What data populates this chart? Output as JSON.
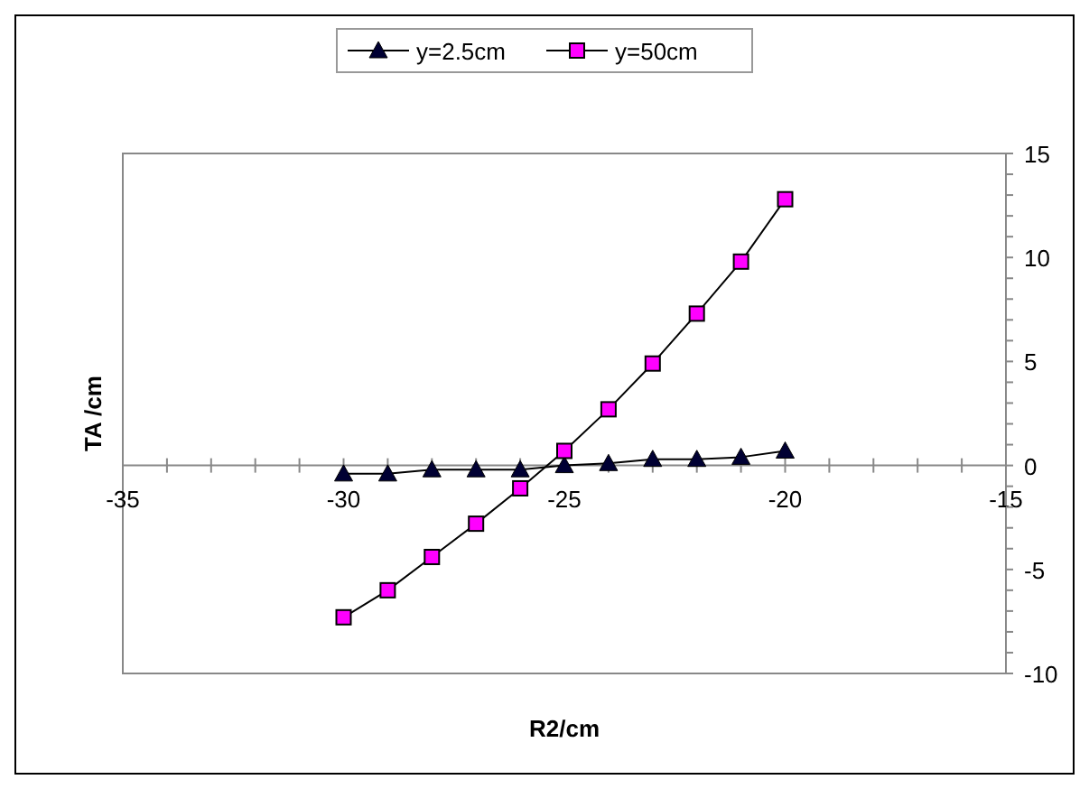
{
  "chart_data": {
    "type": "line",
    "xlabel": "R2/cm",
    "ylabel": "TA /cm",
    "legend": "top",
    "line_style": "solid",
    "x": [
      -30,
      -29,
      -28,
      -27,
      -26,
      -25,
      -24,
      -23,
      -22,
      -21,
      -20
    ],
    "xlim": [
      -35,
      -15
    ],
    "xticks": [
      -35,
      {
        "value": -34,
        "label": null
      },
      {
        "value": -33,
        "label": null
      },
      {
        "value": -32,
        "label": null
      },
      {
        "value": -31,
        "label": null
      },
      -30,
      {
        "value": -29,
        "label": null
      },
      {
        "value": -28,
        "label": null
      },
      {
        "value": -27,
        "label": null
      },
      {
        "value": -26,
        "label": null
      },
      -25,
      {
        "value": -24,
        "label": null
      },
      {
        "value": -23,
        "label": null
      },
      {
        "value": -22,
        "label": null
      },
      {
        "value": -21,
        "label": null
      },
      -20,
      {
        "value": -19,
        "label": null
      },
      {
        "value": -18,
        "label": null
      },
      {
        "value": -17,
        "label": null
      },
      {
        "value": -16,
        "label": null
      },
      -15
    ],
    "ylim": [
      -10,
      15
    ],
    "yticks": [
      -10,
      {
        "value": -9,
        "label": null
      },
      {
        "value": -8,
        "label": null
      },
      {
        "value": -7,
        "label": null
      },
      {
        "value": -6,
        "label": null
      },
      -5,
      {
        "value": -4,
        "label": null
      },
      {
        "value": -3,
        "label": null
      },
      {
        "value": -2,
        "label": null
      },
      {
        "value": -1,
        "label": null
      },
      0,
      {
        "value": 1,
        "label": null
      },
      {
        "value": 2,
        "label": null
      },
      {
        "value": 3,
        "label": null
      },
      {
        "value": 4,
        "label": null
      },
      5,
      {
        "value": 6,
        "label": null
      },
      {
        "value": 7,
        "label": null
      },
      {
        "value": 8,
        "label": null
      },
      {
        "value": 9,
        "label": null
      },
      10,
      {
        "value": 11,
        "label": null
      },
      {
        "value": 12,
        "label": null
      },
      {
        "value": 13,
        "label": null
      },
      {
        "value": 14,
        "label": null
      },
      15
    ],
    "series": [
      {
        "name": "y=2.5cm",
        "color": "#000033",
        "marker": "triangle",
        "values": [
          -0.4,
          -0.4,
          -0.2,
          -0.2,
          -0.2,
          0,
          0.1,
          0.3,
          0.3,
          0.4,
          0.7
        ]
      },
      {
        "name": "y=50cm",
        "color": "#ff00ff",
        "marker": "square",
        "values": [
          -7.3,
          -6,
          -4.4,
          -2.8,
          -1.1,
          0.7,
          2.7,
          4.9,
          7.3,
          9.8,
          12.8
        ]
      }
    ]
  }
}
